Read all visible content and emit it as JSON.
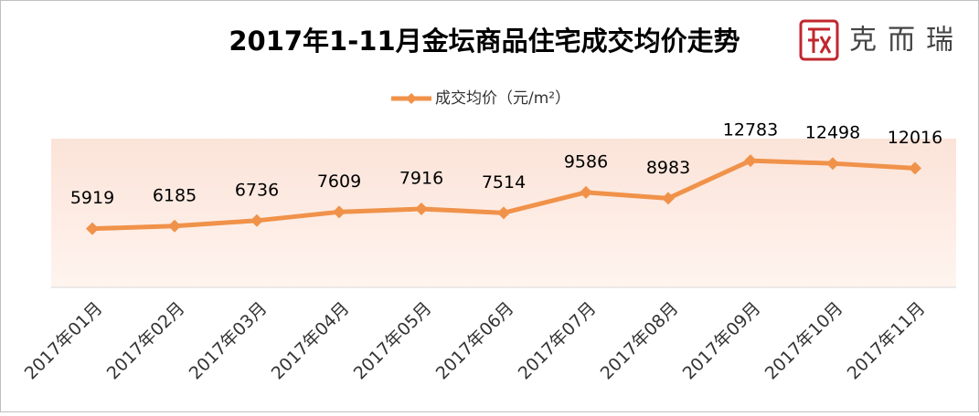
{
  "chart_data": {
    "type": "line",
    "title": "2017年1-11月金坛商品住宅成交均价走势",
    "logo": "克而瑞",
    "categories": [
      "2017年01月",
      "2017年02月",
      "2017年03月",
      "2017年04月",
      "2017年05月",
      "2017年06月",
      "2017年07月",
      "2017年08月",
      "2017年09月",
      "2017年10月",
      "2017年11月"
    ],
    "series": [
      {
        "name": "成交均价（元/m²）",
        "color": "#f0924a",
        "values": [
          5919,
          6185,
          6736,
          7609,
          7916,
          7514,
          9586,
          8983,
          12783,
          12498,
          12016
        ]
      }
    ],
    "ylim": [
      0,
      15000
    ],
    "legend": "top"
  }
}
